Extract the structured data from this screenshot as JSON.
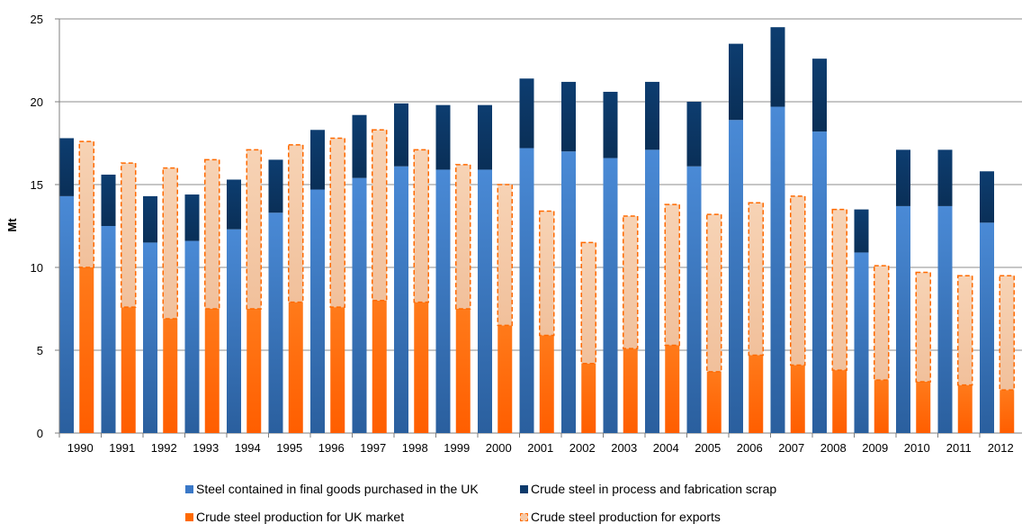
{
  "chart_data": {
    "type": "bar",
    "ylabel": "Mt",
    "ylim": [
      0,
      25
    ],
    "yticks": [
      0,
      5,
      10,
      15,
      20,
      25
    ],
    "grid": true,
    "legend_position": "bottom",
    "categories": [
      "1990",
      "1991",
      "1992",
      "1993",
      "1994",
      "1995",
      "1996",
      "1997",
      "1998",
      "1999",
      "2000",
      "2001",
      "2002",
      "2003",
      "2004",
      "2005",
      "2006",
      "2007",
      "2008",
      "2009",
      "2010",
      "2011",
      "2012"
    ],
    "stacks": [
      {
        "stack": "consumption",
        "series": [
          {
            "name": "Steel contained in final goods purchased in the UK",
            "color": "#3a78c7",
            "values": [
              14.3,
              12.5,
              11.5,
              11.6,
              12.3,
              13.3,
              14.7,
              15.4,
              16.1,
              15.9,
              15.9,
              17.2,
              17.0,
              16.6,
              17.1,
              16.1,
              18.9,
              19.7,
              18.2,
              10.9,
              13.7,
              13.7,
              12.7
            ]
          },
          {
            "name": "Crude steel in process and fabrication scrap",
            "color": "#0c3a6b",
            "values": [
              3.5,
              3.1,
              2.8,
              2.8,
              3.0,
              3.2,
              3.6,
              3.8,
              3.8,
              3.9,
              3.9,
              4.2,
              4.2,
              4.0,
              4.1,
              3.9,
              4.6,
              4.8,
              4.4,
              2.6,
              3.4,
              3.4,
              3.1
            ]
          }
        ]
      },
      {
        "stack": "production",
        "series": [
          {
            "name": "Crude steel production for UK market",
            "color": "#ff6a00",
            "values": [
              10.0,
              7.6,
              6.9,
              7.5,
              7.5,
              7.9,
              7.6,
              8.0,
              7.9,
              7.5,
              6.5,
              5.9,
              4.2,
              5.1,
              5.3,
              3.7,
              4.7,
              4.1,
              3.8,
              3.2,
              3.1,
              2.9,
              2.6
            ]
          },
          {
            "name": "Crude steel production for exports",
            "color": "#f6c9a6",
            "border_color": "#ff6a00",
            "values": [
              7.6,
              8.7,
              9.1,
              9.0,
              9.6,
              9.5,
              10.2,
              10.3,
              9.2,
              8.7,
              8.5,
              7.5,
              7.3,
              8.0,
              8.5,
              9.5,
              9.2,
              10.2,
              9.7,
              6.9,
              6.6,
              6.6,
              6.9
            ]
          }
        ]
      }
    ]
  }
}
